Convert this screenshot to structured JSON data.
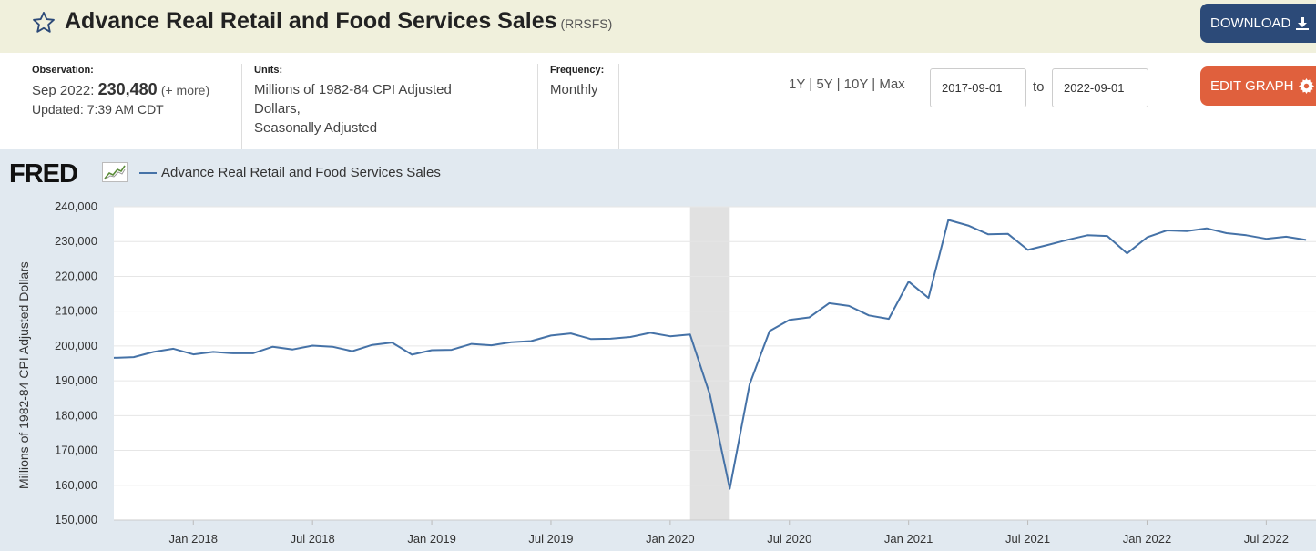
{
  "header": {
    "title": "Advance Real Retail and Food Services Sales",
    "series_id": "(RRSFS)",
    "download_label": "DOWNLOAD"
  },
  "meta": {
    "observation_label": "Observation:",
    "observation_date": "Sep 2022:",
    "observation_value": "230,480",
    "observation_more": "(+ more)",
    "updated": "Updated: 7:39 AM CDT",
    "units_label": "Units:",
    "units_line1": "Millions of 1982-84 CPI Adjusted",
    "units_line2": "Dollars,",
    "units_line3": "Seasonally Adjusted",
    "frequency_label": "Frequency:",
    "frequency_value": "Monthly"
  },
  "controls": {
    "range_1y": "1Y",
    "range_5y": "5Y",
    "range_10y": "10Y",
    "range_max": "Max",
    "divider": "|",
    "start_date": "2017-09-01",
    "to_label": "to",
    "end_date": "2022-09-01",
    "edit_label": "EDIT GRAPH"
  },
  "graph": {
    "logo": "FRED",
    "legend_label": "Advance Real Retail and Food Services Sales"
  },
  "chart_data": {
    "type": "line",
    "title": "",
    "ylabel": "Millions of 1982-84 CPI Adjusted Dollars",
    "xlabel": "",
    "ylim": [
      150000,
      240000
    ],
    "y_ticks": [
      150000,
      160000,
      170000,
      180000,
      190000,
      200000,
      210000,
      220000,
      230000,
      240000
    ],
    "y_tick_labels": [
      "150,000",
      "160,000",
      "170,000",
      "180,000",
      "190,000",
      "200,000",
      "210,000",
      "220,000",
      "230,000",
      "240,000"
    ],
    "x_tick_labels": [
      "Jan 2018",
      "Jul 2018",
      "Jan 2019",
      "Jul 2019",
      "Jan 2020",
      "Jul 2020",
      "Jan 2021",
      "Jul 2021",
      "Jan 2022",
      "Jul 2022"
    ],
    "x_tick_dates": [
      "2018-01",
      "2018-07",
      "2019-01",
      "2019-07",
      "2020-01",
      "2020-07",
      "2021-01",
      "2021-07",
      "2022-01",
      "2022-07"
    ],
    "grid": true,
    "recession_shading": {
      "start": "2020-02",
      "end": "2020-04"
    },
    "line_color": "#4572a7",
    "shading_color": "#e1e1e1",
    "series": [
      {
        "name": "Advance Real Retail and Food Services Sales",
        "x": [
          "2017-09",
          "2017-10",
          "2017-11",
          "2017-12",
          "2018-01",
          "2018-02",
          "2018-03",
          "2018-04",
          "2018-05",
          "2018-06",
          "2018-07",
          "2018-08",
          "2018-09",
          "2018-10",
          "2018-11",
          "2018-12",
          "2019-01",
          "2019-02",
          "2019-03",
          "2019-04",
          "2019-05",
          "2019-06",
          "2019-07",
          "2019-08",
          "2019-09",
          "2019-10",
          "2019-11",
          "2019-12",
          "2020-01",
          "2020-02",
          "2020-03",
          "2020-04",
          "2020-05",
          "2020-06",
          "2020-07",
          "2020-08",
          "2020-09",
          "2020-10",
          "2020-11",
          "2020-12",
          "2021-01",
          "2021-02",
          "2021-03",
          "2021-04",
          "2021-05",
          "2021-06",
          "2021-07",
          "2021-08",
          "2021-09",
          "2021-10",
          "2021-11",
          "2021-12",
          "2022-01",
          "2022-02",
          "2022-03",
          "2022-04",
          "2022-05",
          "2022-06",
          "2022-07",
          "2022-08",
          "2022-09"
        ],
        "values": [
          196600,
          196800,
          198300,
          199200,
          197600,
          198300,
          197900,
          197900,
          199800,
          199000,
          200100,
          199800,
          198500,
          200300,
          201000,
          197500,
          198800,
          198900,
          200600,
          200200,
          201100,
          201400,
          203000,
          203600,
          202000,
          202100,
          202600,
          203800,
          202800,
          203300,
          186000,
          159000,
          189000,
          204300,
          207500,
          208200,
          212300,
          211500,
          208800,
          207800,
          218500,
          213800,
          236200,
          234600,
          232100,
          232200,
          227600,
          229000,
          230500,
          231800,
          231600,
          226600,
          231200,
          233200,
          233000,
          233800,
          232400,
          231800,
          230800,
          231400,
          230480
        ]
      }
    ]
  }
}
